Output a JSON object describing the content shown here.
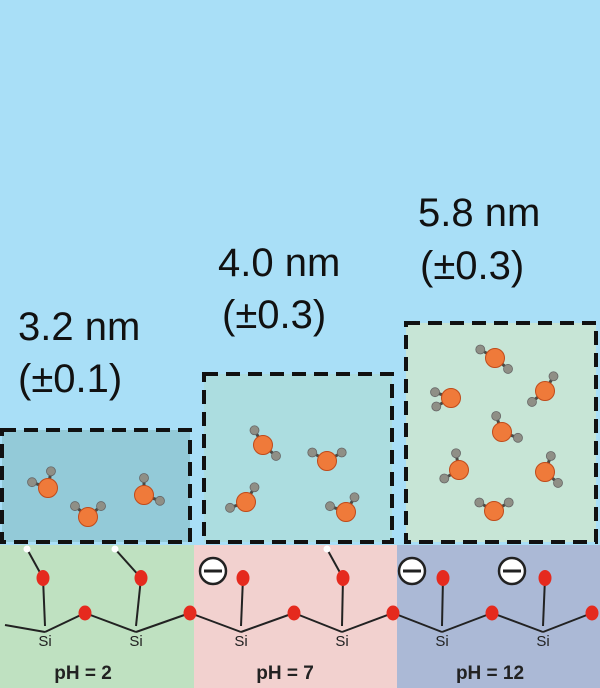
{
  "colors": {
    "background": "#a9dff7",
    "box_ph2": "#93cad8",
    "box_ph7": "#acdde0",
    "box_ph12": "#c7e5d6",
    "panel_ph2": "#bfe1c1",
    "panel_ph7": "#f2d1cf",
    "panel_ph12": "#abb9d6",
    "oxygen": "#e52a1e",
    "water_oxygen": "#ef7a3a",
    "hydrogen": "#8f8f86"
  },
  "layers": [
    {
      "thickness": "3.2 nm",
      "error": "(±0.1)",
      "ph_label": "pH = 2"
    },
    {
      "thickness": "4.0 nm",
      "error": "(±0.3)",
      "ph_label": "pH = 7"
    },
    {
      "thickness": "5.8 nm",
      "error": "(±0.3)",
      "ph_label": "pH = 12"
    }
  ],
  "silicon_label": "Si",
  "icons": {
    "charge": "negative-charge-icon",
    "water": "water-molecule-icon"
  }
}
